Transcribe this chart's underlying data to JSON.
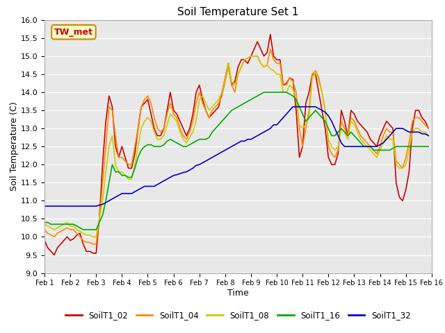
{
  "title": "Soil Temperature Set 1",
  "xlabel": "Time",
  "ylabel": "Soil Temperature (C)",
  "ylim": [
    9.0,
    16.0
  ],
  "yticks": [
    9.0,
    9.5,
    10.0,
    10.5,
    11.0,
    11.5,
    12.0,
    12.5,
    13.0,
    13.5,
    14.0,
    14.5,
    15.0,
    15.5,
    16.0
  ],
  "fig_bg_color": "#ffffff",
  "plot_bg_color": "#e8e8e8",
  "annotation_text": "TW_met",
  "annotation_bg": "#ffffcc",
  "annotation_border": "#cc8800",
  "annotation_text_color": "#cc0000",
  "series": {
    "SoilT1_02": {
      "color": "#cc0000",
      "x": [
        1,
        1.125,
        1.25,
        1.375,
        1.5,
        1.625,
        1.75,
        1.875,
        2,
        2.125,
        2.25,
        2.375,
        2.5,
        2.625,
        2.75,
        2.875,
        3,
        3.125,
        3.25,
        3.375,
        3.5,
        3.625,
        3.75,
        3.875,
        4,
        4.125,
        4.25,
        4.375,
        4.5,
        4.625,
        4.75,
        4.875,
        5,
        5.125,
        5.25,
        5.375,
        5.5,
        5.625,
        5.75,
        5.875,
        6,
        6.125,
        6.25,
        6.375,
        6.5,
        6.625,
        6.75,
        6.875,
        7,
        7.125,
        7.25,
        7.375,
        7.5,
        7.625,
        7.75,
        7.875,
        8,
        8.125,
        8.25,
        8.375,
        8.5,
        8.625,
        8.75,
        8.875,
        9,
        9.125,
        9.25,
        9.375,
        9.5,
        9.625,
        9.75,
        9.875,
        10,
        10.125,
        10.25,
        10.375,
        10.5,
        10.625,
        10.75,
        10.875,
        11,
        11.125,
        11.25,
        11.375,
        11.5,
        11.625,
        11.75,
        11.875,
        12,
        12.125,
        12.25,
        12.375,
        12.5,
        12.625,
        12.75,
        12.875,
        13,
        13.125,
        13.25,
        13.375,
        13.5,
        13.625,
        13.75,
        13.875,
        14,
        14.125,
        14.25,
        14.375,
        14.5,
        14.625,
        14.75,
        14.875,
        15,
        15.125,
        15.25,
        15.375,
        15.5,
        15.625,
        15.75,
        15.875
      ],
      "y": [
        9.9,
        9.7,
        9.6,
        9.5,
        9.7,
        9.8,
        9.9,
        10.0,
        9.9,
        9.95,
        10.05,
        10.1,
        9.8,
        9.6,
        9.6,
        9.55,
        9.55,
        10.5,
        12.0,
        13.2,
        13.9,
        13.6,
        12.5,
        12.2,
        12.5,
        12.2,
        11.9,
        11.9,
        12.3,
        13.0,
        13.6,
        13.7,
        13.8,
        13.4,
        13.0,
        12.8,
        12.8,
        13.0,
        13.5,
        14.0,
        13.5,
        13.4,
        13.2,
        13.0,
        12.8,
        13.0,
        13.4,
        14.0,
        14.2,
        13.8,
        13.5,
        13.3,
        13.4,
        13.5,
        13.6,
        14.0,
        14.4,
        14.8,
        14.2,
        14.3,
        14.7,
        14.9,
        14.9,
        14.8,
        15.0,
        15.2,
        15.4,
        15.2,
        15.0,
        15.1,
        15.6,
        15.0,
        14.9,
        14.9,
        14.2,
        14.25,
        14.4,
        14.35,
        13.5,
        12.2,
        12.5,
        13.7,
        14.0,
        14.5,
        14.5,
        14.0,
        13.5,
        13.0,
        12.2,
        12.0,
        12.0,
        12.3,
        13.5,
        13.2,
        12.8,
        13.5,
        13.4,
        13.2,
        13.1,
        13.0,
        12.9,
        12.7,
        12.6,
        12.5,
        12.8,
        13.0,
        13.2,
        13.1,
        13.0,
        11.5,
        11.1,
        11.0,
        11.3,
        11.8,
        13.0,
        13.5,
        13.5,
        13.3,
        13.2,
        13.0
      ]
    },
    "SoilT1_04": {
      "color": "#ff8800",
      "x": [
        1,
        1.125,
        1.25,
        1.375,
        1.5,
        1.625,
        1.75,
        1.875,
        2,
        2.125,
        2.25,
        2.375,
        2.5,
        2.625,
        2.75,
        2.875,
        3,
        3.125,
        3.25,
        3.375,
        3.5,
        3.625,
        3.75,
        3.875,
        4,
        4.125,
        4.25,
        4.375,
        4.5,
        4.625,
        4.75,
        4.875,
        5,
        5.125,
        5.25,
        5.375,
        5.5,
        5.625,
        5.75,
        5.875,
        6,
        6.125,
        6.25,
        6.375,
        6.5,
        6.625,
        6.75,
        6.875,
        7,
        7.125,
        7.25,
        7.375,
        7.5,
        7.625,
        7.75,
        7.875,
        8,
        8.125,
        8.25,
        8.375,
        8.5,
        8.625,
        8.75,
        8.875,
        9,
        9.125,
        9.25,
        9.375,
        9.5,
        9.625,
        9.75,
        9.875,
        10,
        10.125,
        10.25,
        10.375,
        10.5,
        10.625,
        10.75,
        10.875,
        11,
        11.125,
        11.25,
        11.375,
        11.5,
        11.625,
        11.75,
        11.875,
        12,
        12.125,
        12.25,
        12.375,
        12.5,
        12.625,
        12.75,
        12.875,
        13,
        13.125,
        13.25,
        13.375,
        13.5,
        13.625,
        13.75,
        13.875,
        14,
        14.125,
        14.25,
        14.375,
        14.5,
        14.625,
        14.75,
        14.875,
        15,
        15.125,
        15.25,
        15.375,
        15.5,
        15.625,
        15.75,
        15.875
      ],
      "y": [
        10.2,
        10.1,
        10.05,
        10.0,
        10.1,
        10.15,
        10.2,
        10.25,
        10.2,
        10.2,
        10.1,
        10.0,
        9.9,
        9.85,
        9.85,
        9.8,
        9.8,
        10.5,
        11.5,
        12.5,
        13.6,
        13.5,
        12.8,
        12.2,
        12.2,
        12.1,
        12.0,
        12.0,
        12.5,
        13.0,
        13.6,
        13.8,
        13.9,
        13.7,
        13.3,
        13.0,
        12.9,
        13.0,
        13.4,
        13.7,
        13.4,
        13.3,
        13.0,
        12.8,
        12.7,
        12.9,
        13.2,
        13.7,
        14.0,
        13.7,
        13.5,
        13.3,
        13.5,
        13.6,
        13.7,
        13.9,
        14.3,
        14.7,
        14.2,
        14.0,
        14.5,
        14.7,
        14.9,
        14.95,
        15.0,
        15.0,
        15.0,
        14.8,
        14.7,
        14.75,
        15.2,
        14.9,
        14.8,
        14.8,
        14.2,
        14.2,
        14.4,
        14.3,
        14.0,
        13.0,
        12.5,
        13.0,
        13.5,
        14.5,
        14.6,
        14.4,
        14.0,
        13.5,
        12.5,
        12.3,
        12.2,
        12.4,
        13.2,
        13.0,
        12.8,
        13.3,
        13.2,
        13.0,
        12.8,
        12.7,
        12.6,
        12.5,
        12.4,
        12.3,
        12.5,
        12.8,
        13.0,
        12.9,
        12.9,
        12.1,
        12.0,
        11.9,
        12.2,
        12.6,
        13.2,
        13.3,
        13.3,
        13.2,
        13.1,
        13.0
      ]
    },
    "SoilT1_08": {
      "color": "#cccc00",
      "x": [
        1,
        1.125,
        1.25,
        1.375,
        1.5,
        1.625,
        1.75,
        1.875,
        2,
        2.125,
        2.25,
        2.375,
        2.5,
        2.625,
        2.75,
        2.875,
        3,
        3.125,
        3.25,
        3.375,
        3.5,
        3.625,
        3.75,
        3.875,
        4,
        4.125,
        4.25,
        4.375,
        4.5,
        4.625,
        4.75,
        4.875,
        5,
        5.125,
        5.25,
        5.375,
        5.5,
        5.625,
        5.75,
        5.875,
        6,
        6.125,
        6.25,
        6.375,
        6.5,
        6.625,
        6.75,
        6.875,
        7,
        7.125,
        7.25,
        7.375,
        7.5,
        7.625,
        7.75,
        7.875,
        8,
        8.125,
        8.25,
        8.375,
        8.5,
        8.625,
        8.75,
        8.875,
        9,
        9.125,
        9.25,
        9.375,
        9.5,
        9.625,
        9.75,
        9.875,
        10,
        10.125,
        10.25,
        10.375,
        10.5,
        10.625,
        10.75,
        10.875,
        11,
        11.125,
        11.25,
        11.375,
        11.5,
        11.625,
        11.75,
        11.875,
        12,
        12.125,
        12.25,
        12.375,
        12.5,
        12.625,
        12.75,
        12.875,
        13,
        13.125,
        13.25,
        13.375,
        13.5,
        13.625,
        13.75,
        13.875,
        14,
        14.125,
        14.25,
        14.375,
        14.5,
        14.625,
        14.75,
        14.875,
        15,
        15.125,
        15.25,
        15.375,
        15.5,
        15.625,
        15.75,
        15.875
      ],
      "y": [
        10.35,
        10.3,
        10.25,
        10.2,
        10.25,
        10.3,
        10.35,
        10.4,
        10.3,
        10.3,
        10.2,
        10.15,
        10.1,
        10.05,
        10.05,
        10.0,
        10.0,
        10.5,
        11.0,
        11.8,
        12.5,
        12.8,
        12.0,
        11.8,
        11.8,
        11.7,
        11.6,
        11.6,
        12.0,
        12.5,
        13.0,
        13.2,
        13.3,
        13.2,
        12.9,
        12.7,
        12.7,
        12.8,
        13.1,
        13.4,
        13.3,
        13.2,
        12.9,
        12.7,
        12.6,
        12.75,
        12.9,
        13.2,
        13.8,
        13.9,
        13.7,
        13.5,
        13.6,
        13.7,
        13.8,
        14.0,
        14.4,
        14.8,
        14.3,
        14.2,
        14.5,
        14.7,
        14.9,
        14.95,
        15.0,
        15.0,
        15.0,
        14.8,
        14.7,
        14.75,
        14.65,
        14.6,
        14.5,
        14.5,
        14.0,
        14.0,
        14.2,
        14.1,
        13.8,
        13.1,
        13.0,
        13.1,
        13.3,
        14.4,
        14.55,
        14.3,
        14.0,
        13.5,
        12.7,
        12.5,
        12.4,
        12.5,
        13.0,
        12.9,
        12.7,
        13.2,
        13.1,
        12.9,
        12.7,
        12.6,
        12.5,
        12.4,
        12.3,
        12.2,
        12.4,
        12.6,
        12.8,
        12.7,
        12.7,
        12.0,
        11.9,
        11.9,
        12.0,
        12.4,
        12.9,
        13.0,
        13.0,
        12.9,
        12.9,
        12.8
      ]
    },
    "SoilT1_16": {
      "color": "#00aa00",
      "x": [
        1,
        1.125,
        1.25,
        1.375,
        1.5,
        1.625,
        1.75,
        1.875,
        2,
        2.125,
        2.25,
        2.375,
        2.5,
        2.625,
        2.75,
        2.875,
        3,
        3.125,
        3.25,
        3.375,
        3.5,
        3.625,
        3.75,
        3.875,
        4,
        4.125,
        4.25,
        4.375,
        4.5,
        4.625,
        4.75,
        4.875,
        5,
        5.125,
        5.25,
        5.375,
        5.5,
        5.625,
        5.75,
        5.875,
        6,
        6.125,
        6.25,
        6.375,
        6.5,
        6.625,
        6.75,
        6.875,
        7,
        7.125,
        7.25,
        7.375,
        7.5,
        7.625,
        7.75,
        7.875,
        8,
        8.125,
        8.25,
        8.375,
        8.5,
        8.625,
        8.75,
        8.875,
        9,
        9.125,
        9.25,
        9.375,
        9.5,
        9.625,
        9.75,
        9.875,
        10,
        10.125,
        10.25,
        10.375,
        10.5,
        10.625,
        10.75,
        10.875,
        11,
        11.125,
        11.25,
        11.375,
        11.5,
        11.625,
        11.75,
        11.875,
        12,
        12.125,
        12.25,
        12.375,
        12.5,
        12.625,
        12.75,
        12.875,
        13,
        13.125,
        13.25,
        13.375,
        13.5,
        13.625,
        13.75,
        13.875,
        14,
        14.125,
        14.25,
        14.375,
        14.5,
        14.625,
        14.75,
        14.875,
        15,
        15.125,
        15.25,
        15.375,
        15.5,
        15.625,
        15.75,
        15.875
      ],
      "y": [
        10.4,
        10.4,
        10.35,
        10.35,
        10.35,
        10.35,
        10.35,
        10.35,
        10.35,
        10.35,
        10.3,
        10.25,
        10.2,
        10.2,
        10.2,
        10.2,
        10.2,
        10.4,
        10.6,
        11.0,
        11.5,
        12.0,
        11.8,
        11.8,
        11.7,
        11.7,
        11.65,
        11.65,
        11.9,
        12.2,
        12.4,
        12.5,
        12.55,
        12.55,
        12.5,
        12.5,
        12.5,
        12.55,
        12.65,
        12.7,
        12.65,
        12.6,
        12.55,
        12.5,
        12.5,
        12.55,
        12.6,
        12.65,
        12.7,
        12.7,
        12.7,
        12.75,
        12.9,
        13.0,
        13.1,
        13.2,
        13.3,
        13.4,
        13.5,
        13.55,
        13.6,
        13.65,
        13.7,
        13.75,
        13.8,
        13.85,
        13.9,
        13.95,
        14.0,
        14.0,
        14.0,
        14.0,
        14.0,
        14.0,
        14.0,
        14.0,
        13.95,
        13.9,
        13.8,
        13.6,
        13.4,
        13.2,
        13.3,
        13.4,
        13.5,
        13.4,
        13.3,
        13.2,
        13.0,
        12.8,
        12.8,
        12.9,
        13.0,
        12.9,
        12.8,
        12.9,
        12.8,
        12.7,
        12.6,
        12.5,
        12.5,
        12.5,
        12.4,
        12.4,
        12.4,
        12.4,
        12.4,
        12.4,
        12.45,
        12.5,
        12.5,
        12.5,
        12.5,
        12.5,
        12.5,
        12.5,
        12.5,
        12.5,
        12.5,
        12.5
      ]
    },
    "SoilT1_32": {
      "color": "#0000cc",
      "x": [
        1,
        1.125,
        1.25,
        1.375,
        1.5,
        1.625,
        1.75,
        1.875,
        2,
        2.125,
        2.25,
        2.375,
        2.5,
        2.625,
        2.75,
        2.875,
        3,
        3.125,
        3.25,
        3.375,
        3.5,
        3.625,
        3.75,
        3.875,
        4,
        4.125,
        4.25,
        4.375,
        4.5,
        4.625,
        4.75,
        4.875,
        5,
        5.125,
        5.25,
        5.375,
        5.5,
        5.625,
        5.75,
        5.875,
        6,
        6.125,
        6.25,
        6.375,
        6.5,
        6.625,
        6.75,
        6.875,
        7,
        7.125,
        7.25,
        7.375,
        7.5,
        7.625,
        7.75,
        7.875,
        8,
        8.125,
        8.25,
        8.375,
        8.5,
        8.625,
        8.75,
        8.875,
        9,
        9.125,
        9.25,
        9.375,
        9.5,
        9.625,
        9.75,
        9.875,
        10,
        10.125,
        10.25,
        10.375,
        10.5,
        10.625,
        10.75,
        10.875,
        11,
        11.125,
        11.25,
        11.375,
        11.5,
        11.625,
        11.75,
        11.875,
        12,
        12.125,
        12.25,
        12.375,
        12.5,
        12.625,
        12.75,
        12.875,
        13,
        13.125,
        13.25,
        13.375,
        13.5,
        13.625,
        13.75,
        13.875,
        14,
        14.125,
        14.25,
        14.375,
        14.5,
        14.625,
        14.75,
        14.875,
        15,
        15.125,
        15.25,
        15.375,
        15.5,
        15.625,
        15.75,
        15.875
      ],
      "y": [
        10.85,
        10.85,
        10.85,
        10.85,
        10.85,
        10.85,
        10.85,
        10.85,
        10.85,
        10.85,
        10.85,
        10.85,
        10.85,
        10.85,
        10.85,
        10.85,
        10.85,
        10.88,
        10.9,
        10.95,
        11.0,
        11.05,
        11.1,
        11.15,
        11.2,
        11.2,
        11.2,
        11.2,
        11.25,
        11.3,
        11.35,
        11.4,
        11.4,
        11.4,
        11.4,
        11.45,
        11.5,
        11.55,
        11.6,
        11.65,
        11.7,
        11.72,
        11.75,
        11.78,
        11.8,
        11.85,
        11.9,
        11.98,
        12.0,
        12.05,
        12.1,
        12.15,
        12.2,
        12.25,
        12.3,
        12.35,
        12.4,
        12.45,
        12.5,
        12.55,
        12.6,
        12.65,
        12.65,
        12.7,
        12.7,
        12.75,
        12.8,
        12.85,
        12.9,
        12.95,
        13.0,
        13.1,
        13.1,
        13.2,
        13.3,
        13.4,
        13.5,
        13.6,
        13.6,
        13.6,
        13.6,
        13.6,
        13.6,
        13.6,
        13.6,
        13.55,
        13.5,
        13.45,
        13.35,
        13.2,
        13.0,
        12.8,
        12.6,
        12.5,
        12.5,
        12.5,
        12.5,
        12.5,
        12.5,
        12.5,
        12.5,
        12.5,
        12.5,
        12.5,
        12.55,
        12.6,
        12.7,
        12.8,
        12.9,
        13.0,
        13.0,
        13.0,
        12.95,
        12.9,
        12.9,
        12.9,
        12.9,
        12.85,
        12.85,
        12.8
      ]
    }
  },
  "xtick_labels": [
    "Feb 1",
    "Feb 2",
    "Feb 3",
    "Feb 4",
    "Feb 5",
    "Feb 6",
    "Feb 7",
    "Feb 8",
    "Feb 9",
    "Feb 10",
    "Feb 11",
    "Feb 12",
    "Feb 13",
    "Feb 14",
    "Feb 15",
    "Feb 16"
  ],
  "xtick_positions": [
    1,
    2,
    3,
    4,
    5,
    6,
    7,
    8,
    9,
    10,
    11,
    12,
    13,
    14,
    15,
    16
  ],
  "xlim": [
    1,
    16
  ],
  "legend_labels": [
    "SoilT1_02",
    "SoilT1_04",
    "SoilT1_08",
    "SoilT1_16",
    "SoilT1_32"
  ],
  "legend_colors": [
    "#cc0000",
    "#ff8800",
    "#cccc00",
    "#00aa00",
    "#0000cc"
  ]
}
